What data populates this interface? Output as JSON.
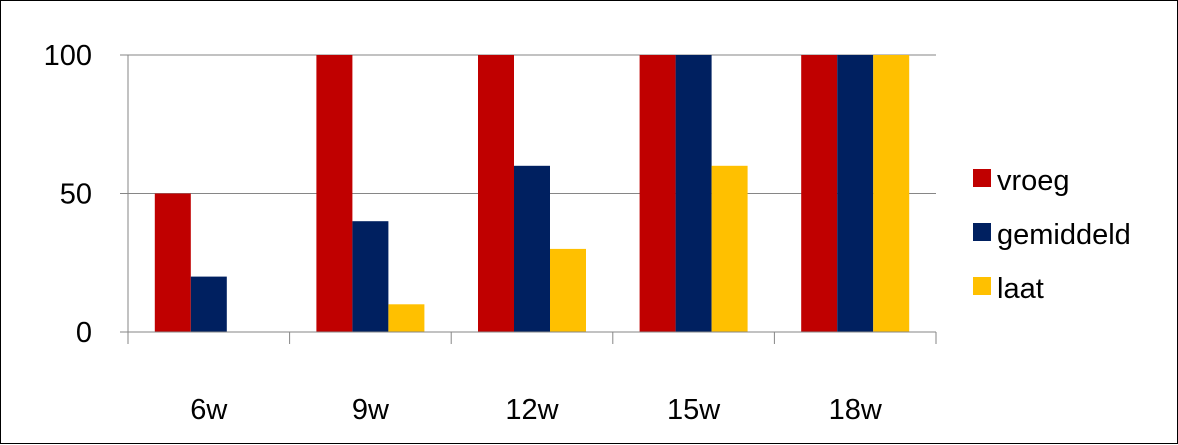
{
  "chart_data": {
    "type": "bar",
    "categories": [
      "6w",
      "9w",
      "12w",
      "15w",
      "18w"
    ],
    "series": [
      {
        "name": "vroeg",
        "color": "#C00000",
        "values": [
          50,
          100,
          100,
          100,
          100
        ]
      },
      {
        "name": "gemiddeld",
        "color": "#002060",
        "values": [
          20,
          40,
          60,
          100,
          100
        ]
      },
      {
        "name": "laat",
        "color": "#FFC000",
        "values": [
          0,
          10,
          30,
          60,
          100
        ]
      }
    ],
    "ylim": [
      0,
      100
    ],
    "yticks": [
      0,
      50,
      100
    ],
    "grid": true,
    "legend": "right",
    "title": "",
    "xlabel": "",
    "ylabel": ""
  }
}
